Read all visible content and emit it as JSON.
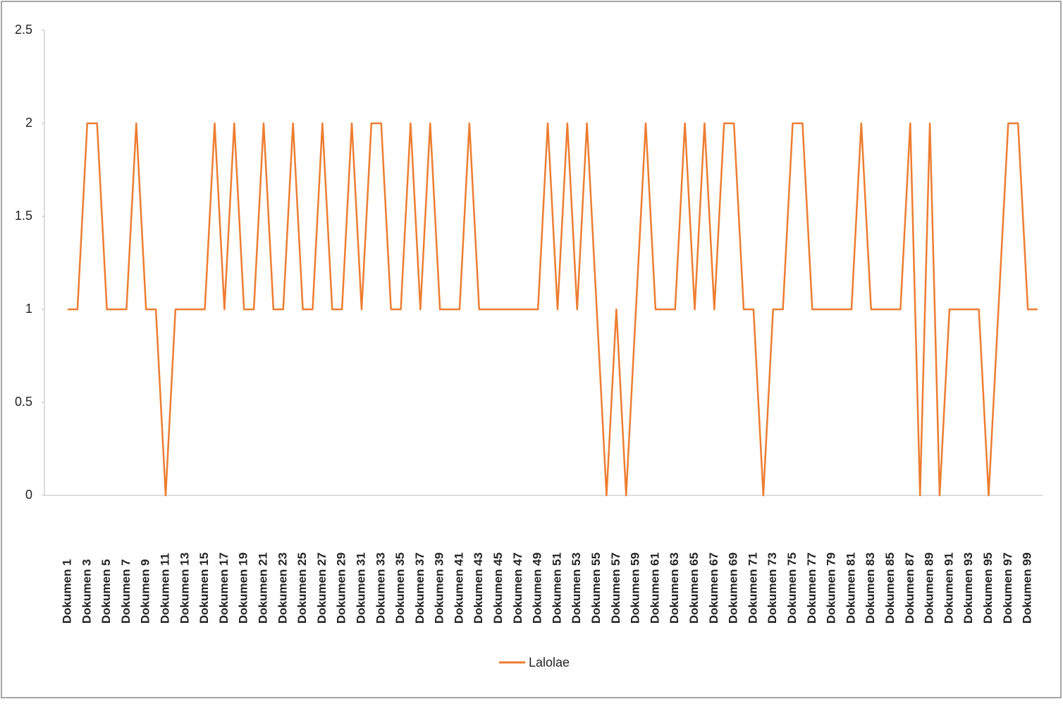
{
  "chart_data": {
    "type": "line",
    "categories": [
      "Dokumen 1",
      null,
      "Dokumen 3",
      null,
      "Dokumen 5",
      null,
      "Dokumen 7",
      null,
      "Dokumen 9",
      null,
      "Dokumen 11",
      null,
      "Dokumen 13",
      null,
      "Dokumen 15",
      null,
      "Dokumen 17",
      null,
      "Dokumen 19",
      null,
      "Dokumen 21",
      null,
      "Dokumen 23",
      null,
      "Dokumen 25",
      null,
      "Dokumen 27",
      null,
      "Dokumen 29",
      null,
      "Dokumen 31",
      null,
      "Dokumen 33",
      null,
      "Dokumen 35",
      null,
      "Dokumen 37",
      null,
      "Dokumen 39",
      null,
      "Dokumen 41",
      null,
      "Dokumen 43",
      null,
      "Dokumen 45",
      null,
      "Dokumen 47",
      null,
      "Dokumen 49",
      null,
      "Dokumen 51",
      null,
      "Dokumen 53",
      null,
      "Dokumen 55",
      null,
      "Dokumen 57",
      null,
      "Dokumen 59",
      null,
      "Dokumen 61",
      null,
      "Dokumen 63",
      null,
      "Dokumen 65",
      null,
      "Dokumen 67",
      null,
      "Dokumen 69",
      null,
      "Dokumen 71",
      null,
      "Dokumen 73",
      null,
      "Dokumen 75",
      null,
      "Dokumen 77",
      null,
      "Dokumen 79",
      null,
      "Dokumen 81",
      null,
      "Dokumen 83",
      null,
      "Dokumen 85",
      null,
      "Dokumen 87",
      null,
      "Dokumen 89",
      null,
      "Dokumen 91",
      null,
      "Dokumen 93",
      null,
      "Dokumen 95",
      null,
      "Dokumen 97",
      null,
      "Dokumen 99",
      null
    ],
    "series": [
      {
        "name": "Lalolae",
        "color": "#ed7d31",
        "values": [
          1,
          1,
          2,
          2,
          1,
          1,
          1,
          2,
          1,
          1,
          0,
          1,
          1,
          1,
          1,
          2,
          1,
          2,
          1,
          1,
          2,
          1,
          1,
          2,
          1,
          1,
          2,
          1,
          1,
          2,
          1,
          2,
          2,
          1,
          1,
          2,
          1,
          2,
          1,
          1,
          1,
          2,
          1,
          1,
          1,
          1,
          1,
          1,
          1,
          2,
          1,
          2,
          1,
          2,
          1,
          0,
          1,
          0,
          1,
          2,
          1,
          1,
          1,
          2,
          1,
          2,
          1,
          2,
          2,
          1,
          1,
          0,
          1,
          1,
          2,
          2,
          1,
          1,
          1,
          1,
          1,
          2,
          1,
          1,
          1,
          1,
          2,
          0,
          2,
          0,
          1,
          1,
          1,
          1,
          0,
          1,
          2,
          2,
          1,
          1
        ]
      }
    ],
    "ylim": [
      0,
      2.5
    ],
    "yticks": [
      0,
      0.5,
      1,
      1.5,
      2,
      2.5
    ],
    "legend": "bottom"
  }
}
